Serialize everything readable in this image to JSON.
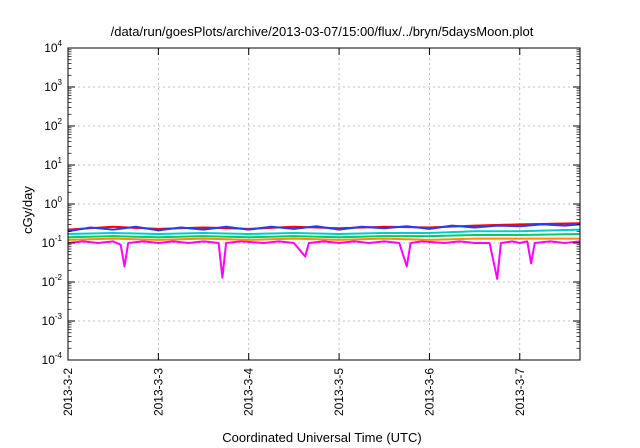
{
  "chart_data": {
    "type": "line",
    "title": "/data/run/goesPlots/archive/2013-03-07/15:00/flux/../bryn/5daysMoon.plot",
    "xlabel": "Coordinated Universal Time (UTC)",
    "ylabel": "cGy/day",
    "xlim": [
      "2013-03-02",
      "2013-03-07T16:00"
    ],
    "ylim": [
      0.0001,
      10000
    ],
    "yscale": "log",
    "grid": true,
    "x_ticks": [
      {
        "value": "2013-03-02",
        "label": "2013-3-2"
      },
      {
        "value": "2013-03-03",
        "label": "2013-3-3"
      },
      {
        "value": "2013-03-04",
        "label": "2013-3-4"
      },
      {
        "value": "2013-03-05",
        "label": "2013-3-5"
      },
      {
        "value": "2013-03-06",
        "label": "2013-3-6"
      },
      {
        "value": "2013-03-07",
        "label": "2013-3-7"
      }
    ],
    "y_ticks": [
      {
        "value": 0.0001,
        "base": "10",
        "exp": "-4"
      },
      {
        "value": 0.001,
        "base": "10",
        "exp": "-3"
      },
      {
        "value": 0.01,
        "base": "10",
        "exp": "-2"
      },
      {
        "value": 0.1,
        "base": "10",
        "exp": "-1"
      },
      {
        "value": 1,
        "base": "10",
        "exp": "0"
      },
      {
        "value": 10,
        "base": "10",
        "exp": "1"
      },
      {
        "value": 100,
        "base": "10",
        "exp": "2"
      },
      {
        "value": 1000,
        "base": "10",
        "exp": "3"
      },
      {
        "value": 10000,
        "base": "10",
        "exp": "4"
      }
    ],
    "series": [
      {
        "color": "#ff00ff",
        "values": [
          [
            "2013-03-02T00:00",
            0.1
          ],
          [
            "2013-03-02T04:00",
            0.11
          ],
          [
            "2013-03-02T08:00",
            0.1
          ],
          [
            "2013-03-02T12:00",
            0.11
          ],
          [
            "2013-03-02T14:00",
            0.09
          ],
          [
            "2013-03-02T15:00",
            0.025
          ],
          [
            "2013-03-02T16:00",
            0.1
          ],
          [
            "2013-03-02T20:00",
            0.11
          ],
          [
            "2013-03-03T00:00",
            0.1
          ],
          [
            "2013-03-03T04:00",
            0.11
          ],
          [
            "2013-03-03T08:00",
            0.1
          ],
          [
            "2013-03-03T12:00",
            0.11
          ],
          [
            "2013-03-03T16:00",
            0.1
          ],
          [
            "2013-03-03T17:00",
            0.013
          ],
          [
            "2013-03-03T18:00",
            0.1
          ],
          [
            "2013-03-03T22:00",
            0.11
          ],
          [
            "2013-03-04T04:00",
            0.1
          ],
          [
            "2013-03-04T08:00",
            0.11
          ],
          [
            "2013-03-04T12:00",
            0.1
          ],
          [
            "2013-03-04T15:00",
            0.045
          ],
          [
            "2013-03-04T16:00",
            0.1
          ],
          [
            "2013-03-04T20:00",
            0.11
          ],
          [
            "2013-03-05T00:00",
            0.1
          ],
          [
            "2013-03-05T04:00",
            0.11
          ],
          [
            "2013-03-05T08:00",
            0.1
          ],
          [
            "2013-03-05T12:00",
            0.11
          ],
          [
            "2013-03-05T16:00",
            0.1
          ],
          [
            "2013-03-05T18:00",
            0.025
          ],
          [
            "2013-03-05T19:00",
            0.1
          ],
          [
            "2013-03-05T22:00",
            0.11
          ],
          [
            "2013-03-06T04:00",
            0.1
          ],
          [
            "2013-03-06T08:00",
            0.11
          ],
          [
            "2013-03-06T12:00",
            0.1
          ],
          [
            "2013-03-06T16:00",
            0.1
          ],
          [
            "2013-03-06T18:00",
            0.012
          ],
          [
            "2013-03-06T19:00",
            0.1
          ],
          [
            "2013-03-06T22:00",
            0.11
          ],
          [
            "2013-03-07T00:00",
            0.1
          ],
          [
            "2013-03-07T02:00",
            0.11
          ],
          [
            "2013-03-07T03:00",
            0.03
          ],
          [
            "2013-03-07T04:00",
            0.1
          ],
          [
            "2013-03-07T08:00",
            0.11
          ],
          [
            "2013-03-07T12:00",
            0.1
          ],
          [
            "2013-03-07T16:00",
            0.11
          ]
        ]
      },
      {
        "color": "#ff8c00",
        "values": [
          [
            "2013-03-02T00:00",
            0.12
          ],
          [
            "2013-03-02T12:00",
            0.13
          ],
          [
            "2013-03-03T00:00",
            0.12
          ],
          [
            "2013-03-03T12:00",
            0.13
          ],
          [
            "2013-03-04T00:00",
            0.12
          ],
          [
            "2013-03-04T12:00",
            0.13
          ],
          [
            "2013-03-05T00:00",
            0.12
          ],
          [
            "2013-03-05T12:00",
            0.13
          ],
          [
            "2013-03-06T00:00",
            0.12
          ],
          [
            "2013-03-06T12:00",
            0.13
          ],
          [
            "2013-03-07T00:00",
            0.13
          ],
          [
            "2013-03-07T16:00",
            0.13
          ]
        ]
      },
      {
        "color": "#00cc66",
        "values": [
          [
            "2013-03-02T00:00",
            0.14
          ],
          [
            "2013-03-02T12:00",
            0.15
          ],
          [
            "2013-03-03T00:00",
            0.14
          ],
          [
            "2013-03-03T12:00",
            0.15
          ],
          [
            "2013-03-04T00:00",
            0.14
          ],
          [
            "2013-03-04T12:00",
            0.15
          ],
          [
            "2013-03-05T00:00",
            0.14
          ],
          [
            "2013-03-05T12:00",
            0.15
          ],
          [
            "2013-03-06T00:00",
            0.15
          ],
          [
            "2013-03-06T12:00",
            0.16
          ],
          [
            "2013-03-07T00:00",
            0.16
          ],
          [
            "2013-03-07T16:00",
            0.17
          ]
        ]
      },
      {
        "color": "#00cccc",
        "values": [
          [
            "2013-03-02T00:00",
            0.17
          ],
          [
            "2013-03-02T12:00",
            0.18
          ],
          [
            "2013-03-03T00:00",
            0.17
          ],
          [
            "2013-03-03T12:00",
            0.18
          ],
          [
            "2013-03-04T00:00",
            0.17
          ],
          [
            "2013-03-04T12:00",
            0.18
          ],
          [
            "2013-03-05T00:00",
            0.17
          ],
          [
            "2013-03-05T12:00",
            0.18
          ],
          [
            "2013-03-06T00:00",
            0.18
          ],
          [
            "2013-03-06T12:00",
            0.2
          ],
          [
            "2013-03-07T00:00",
            0.2
          ],
          [
            "2013-03-07T16:00",
            0.22
          ]
        ]
      },
      {
        "color": "#ff0000",
        "values": [
          [
            "2013-03-02T00:00",
            0.22
          ],
          [
            "2013-03-02T12:00",
            0.26
          ],
          [
            "2013-03-03T00:00",
            0.23
          ],
          [
            "2013-03-03T12:00",
            0.25
          ],
          [
            "2013-03-04T00:00",
            0.23
          ],
          [
            "2013-03-04T12:00",
            0.26
          ],
          [
            "2013-03-05T00:00",
            0.24
          ],
          [
            "2013-03-05T12:00",
            0.26
          ],
          [
            "2013-03-06T00:00",
            0.25
          ],
          [
            "2013-03-06T12:00",
            0.28
          ],
          [
            "2013-03-07T00:00",
            0.3
          ],
          [
            "2013-03-07T16:00",
            0.32
          ]
        ]
      },
      {
        "color": "#1f3fff",
        "values": [
          [
            "2013-03-02T00:00",
            0.2
          ],
          [
            "2013-03-02T06:00",
            0.25
          ],
          [
            "2013-03-02T12:00",
            0.22
          ],
          [
            "2013-03-02T18:00",
            0.26
          ],
          [
            "2013-03-03T00:00",
            0.21
          ],
          [
            "2013-03-03T06:00",
            0.25
          ],
          [
            "2013-03-03T12:00",
            0.22
          ],
          [
            "2013-03-03T18:00",
            0.26
          ],
          [
            "2013-03-04T00:00",
            0.22
          ],
          [
            "2013-03-04T06:00",
            0.26
          ],
          [
            "2013-03-04T12:00",
            0.23
          ],
          [
            "2013-03-04T18:00",
            0.27
          ],
          [
            "2013-03-05T00:00",
            0.22
          ],
          [
            "2013-03-05T06:00",
            0.26
          ],
          [
            "2013-03-05T12:00",
            0.24
          ],
          [
            "2013-03-05T18:00",
            0.27
          ],
          [
            "2013-03-06T00:00",
            0.23
          ],
          [
            "2013-03-06T06:00",
            0.28
          ],
          [
            "2013-03-06T12:00",
            0.25
          ],
          [
            "2013-03-06T18:00",
            0.28
          ],
          [
            "2013-03-07T00:00",
            0.27
          ],
          [
            "2013-03-07T06:00",
            0.3
          ],
          [
            "2013-03-07T12:00",
            0.28
          ],
          [
            "2013-03-07T16:00",
            0.3
          ]
        ]
      }
    ]
  }
}
